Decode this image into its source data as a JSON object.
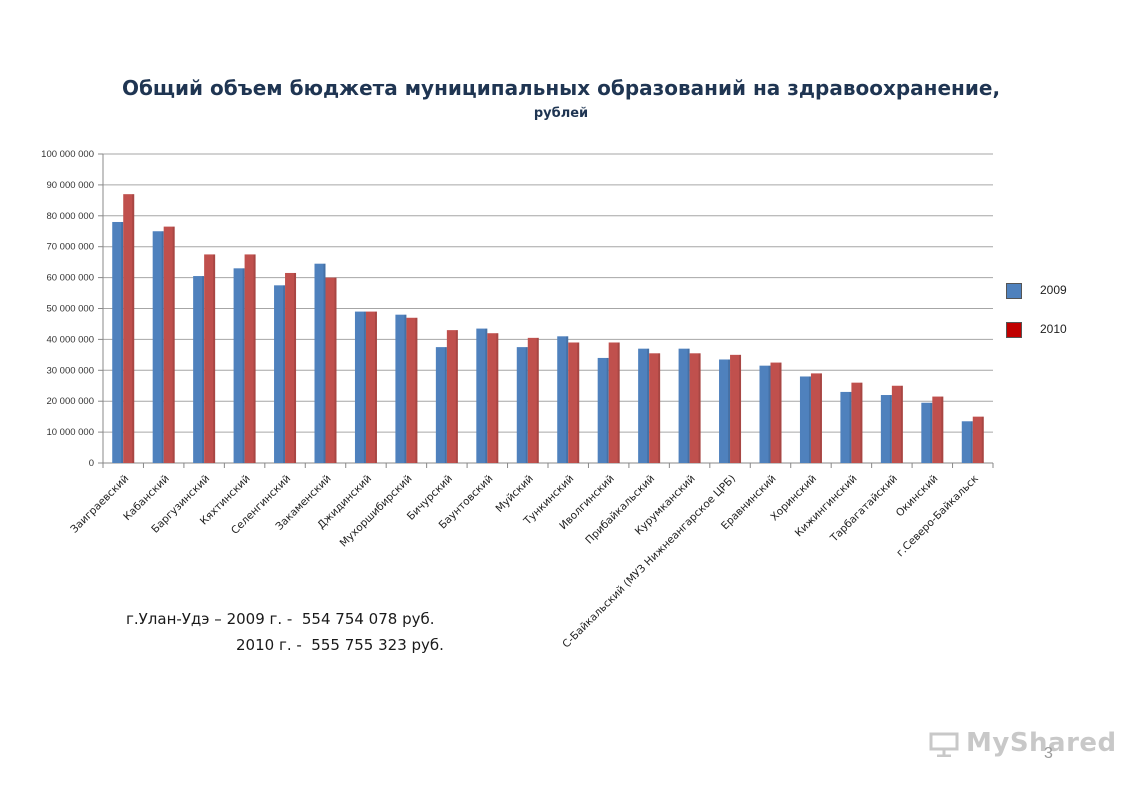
{
  "slide": {
    "title": "Общий объем бюджета  муниципальных образований  на здравоохранение,",
    "subtitle": "рублей",
    "note_line1": "г.Улан-Удэ – 2009 г. -  554 754 078 руб.",
    "note_line2": "2010 г. -  555 755 323 руб.",
    "watermark": "MyShared",
    "page_number": "3"
  },
  "legend": {
    "items": [
      {
        "label": "2009",
        "color": "#4f81bd"
      },
      {
        "label": "2010",
        "color": "#c0504d"
      }
    ],
    "placement": "right"
  },
  "chart_data": {
    "type": "bar",
    "title": "Общий объем бюджета  муниципальных образований  на здравоохранение,",
    "subtitle": "рублей",
    "categories": [
      "Заиграевский",
      "Кабанский",
      "Баргузинский",
      "Кяхтинский",
      "Селенгинский",
      "Закаменский",
      "Джидинский",
      "Мухоршибирский",
      "Бичурский",
      "Баунтовский",
      "Муйский",
      "Тункинский",
      "Иволгинский",
      "Прибайкальский",
      "Курумканский",
      "С-Байкальский (МУЗ Нижнеангарское ЦРБ)",
      "Еравнинский",
      "Хоринский",
      "Кижингинский",
      "Тарбагатайский",
      "Окинский",
      "г.Северо-Байкальск"
    ],
    "series": [
      {
        "name": "2009",
        "color": "#4f81bd",
        "values": [
          78000000,
          75000000,
          60500000,
          63000000,
          57500000,
          64500000,
          49000000,
          48000000,
          37500000,
          43500000,
          37500000,
          41000000,
          34000000,
          37000000,
          37000000,
          33500000,
          31500000,
          28000000,
          23000000,
          22000000,
          19500000,
          13500000
        ]
      },
      {
        "name": "2010",
        "color": "#c0504d",
        "values": [
          87000000,
          76500000,
          67500000,
          67500000,
          61500000,
          60000000,
          49000000,
          47000000,
          43000000,
          42000000,
          40500000,
          39000000,
          39000000,
          35500000,
          35500000,
          35000000,
          32500000,
          29000000,
          26000000,
          25000000,
          21500000,
          15000000
        ]
      }
    ],
    "ylim": [
      0,
      100000000
    ],
    "yticks": [
      "0",
      "10 000 000",
      "20 000 000",
      "30 000 000",
      "40 000 000",
      "50 000 000",
      "60 000 000",
      "70 000 000",
      "80 000 000",
      "90 000 000",
      "100 000 000"
    ],
    "grid": true
  }
}
